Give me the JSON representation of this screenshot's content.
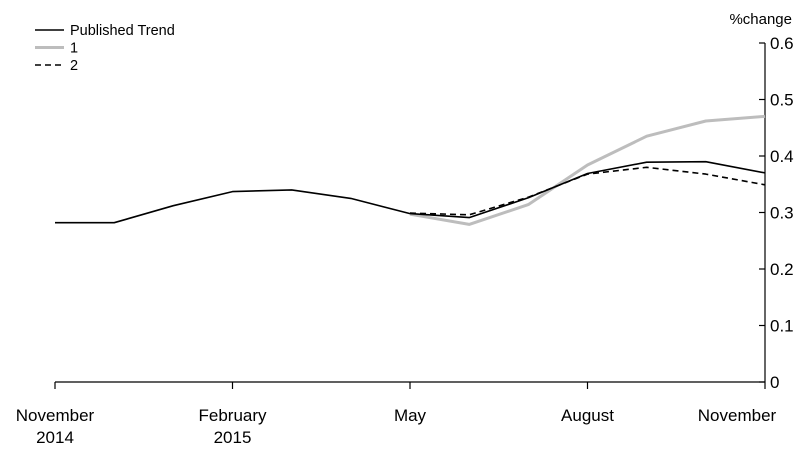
{
  "chart_data": {
    "type": "line",
    "title": "",
    "xlabel": "",
    "ylabel": "%change",
    "ylim": [
      0,
      0.6
    ],
    "y_ticks": [
      "0",
      "0.1",
      "0.2",
      "0.3",
      "0.4",
      "0.5",
      "0.6"
    ],
    "y_axis_side": "right",
    "grid": false,
    "legend_position": "top-left",
    "x": [
      "2014-11",
      "2014-12",
      "2015-01",
      "2015-02",
      "2015-03",
      "2015-04",
      "2015-05",
      "2015-06",
      "2015-07",
      "2015-08",
      "2015-09",
      "2015-10",
      "2015-11"
    ],
    "x_ticks": [
      {
        "index": 0,
        "line1": "November",
        "line2": "2014"
      },
      {
        "index": 3,
        "line1": "February",
        "line2": "2015"
      },
      {
        "index": 6,
        "line1": "May",
        "line2": ""
      },
      {
        "index": 9,
        "line1": "August",
        "line2": ""
      },
      {
        "index": 12,
        "line1": "November",
        "line2": ""
      }
    ],
    "series": [
      {
        "name": "Published Trend",
        "color": "#000000",
        "style": "solid",
        "values": [
          0.282,
          0.282,
          0.312,
          0.337,
          0.34,
          0.325,
          0.298,
          0.291,
          0.326,
          0.369,
          0.389,
          0.39,
          0.37
        ]
      },
      {
        "name": "1",
        "color": "#bdbdbd",
        "style": "solid",
        "values": [
          null,
          null,
          null,
          null,
          null,
          null,
          0.297,
          0.279,
          0.314,
          0.384,
          0.435,
          0.462,
          0.47
        ]
      },
      {
        "name": "2",
        "color": "#000000",
        "style": "dashed",
        "values": [
          null,
          null,
          null,
          null,
          null,
          null,
          0.299,
          0.296,
          0.327,
          0.368,
          0.38,
          0.368,
          0.349
        ]
      }
    ]
  }
}
